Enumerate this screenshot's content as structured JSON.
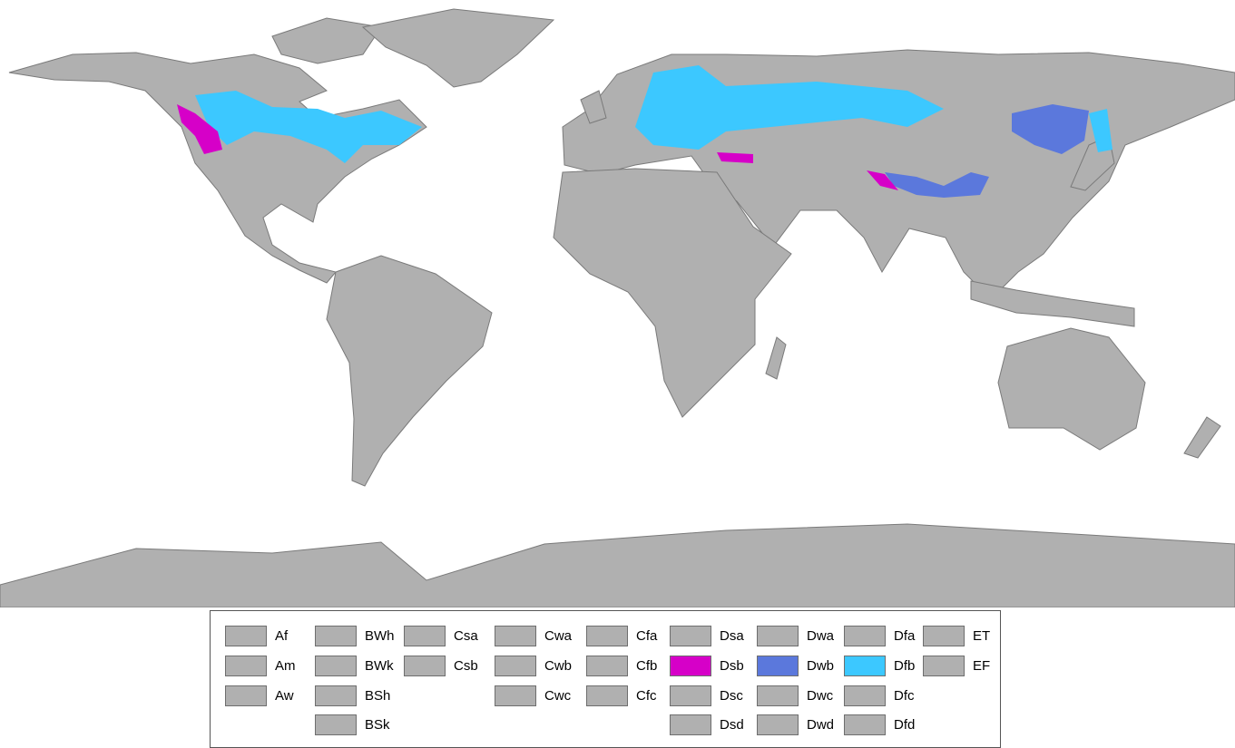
{
  "colors": {
    "land": "#b0b0b0",
    "ocean": "#ffffff",
    "Dsb": "#d600c8",
    "Dwb": "#5b78dc",
    "Dfb": "#3cc8ff"
  },
  "legend": {
    "columns": [
      [
        {
          "code": "Af",
          "color": "#b0b0b0"
        },
        {
          "code": "Am",
          "color": "#b0b0b0"
        },
        {
          "code": "Aw",
          "color": "#b0b0b0"
        }
      ],
      [
        {
          "code": "BWh",
          "color": "#b0b0b0"
        },
        {
          "code": "BWk",
          "color": "#b0b0b0"
        },
        {
          "code": "BSh",
          "color": "#b0b0b0"
        },
        {
          "code": "BSk",
          "color": "#b0b0b0"
        }
      ],
      [
        {
          "code": "Csa",
          "color": "#b0b0b0"
        },
        {
          "code": "Csb",
          "color": "#b0b0b0"
        }
      ],
      [
        {
          "code": "Cwa",
          "color": "#b0b0b0"
        },
        {
          "code": "Cwb",
          "color": "#b0b0b0"
        },
        {
          "code": "Cwc",
          "color": "#b0b0b0"
        }
      ],
      [
        {
          "code": "Cfa",
          "color": "#b0b0b0"
        },
        {
          "code": "Cfb",
          "color": "#b0b0b0"
        },
        {
          "code": "Cfc",
          "color": "#b0b0b0"
        }
      ],
      [
        {
          "code": "Dsa",
          "color": "#b0b0b0"
        },
        {
          "code": "Dsb",
          "color": "#d600c8"
        },
        {
          "code": "Dsc",
          "color": "#b0b0b0"
        },
        {
          "code": "Dsd",
          "color": "#b0b0b0"
        }
      ],
      [
        {
          "code": "Dwa",
          "color": "#b0b0b0"
        },
        {
          "code": "Dwb",
          "color": "#5b78dc"
        },
        {
          "code": "Dwc",
          "color": "#b0b0b0"
        },
        {
          "code": "Dwd",
          "color": "#b0b0b0"
        }
      ],
      [
        {
          "code": "Dfa",
          "color": "#b0b0b0"
        },
        {
          "code": "Dfb",
          "color": "#3cc8ff"
        },
        {
          "code": "Dfc",
          "color": "#b0b0b0"
        },
        {
          "code": "Dfd",
          "color": "#b0b0b0"
        }
      ],
      [
        {
          "code": "ET",
          "color": "#b0b0b0"
        },
        {
          "code": "EF",
          "color": "#b0b0b0"
        }
      ]
    ]
  }
}
